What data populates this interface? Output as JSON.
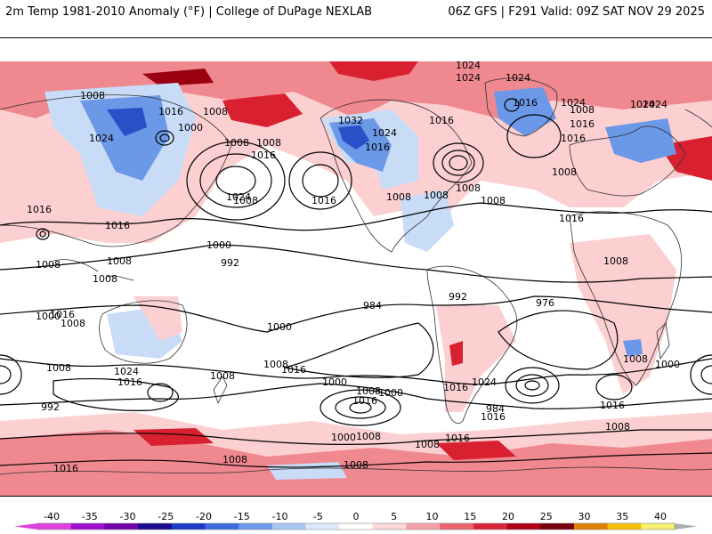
{
  "header": {
    "left_title": "2m Temp 1981-2010 Anomaly (°F) | College of DuPage NEXLAB",
    "right_title": "06Z GFS | F291 Valid: 09Z SAT NOV 29 2025"
  },
  "contour_labels": [
    {
      "text": "1024"
    },
    {
      "text": "1024"
    },
    {
      "text": "1024"
    },
    {
      "text": "1008"
    },
    {
      "text": "1016"
    },
    {
      "text": "1016"
    },
    {
      "text": "1008"
    },
    {
      "text": "1000"
    },
    {
      "text": "1032"
    },
    {
      "text": "1024"
    },
    {
      "text": "1016"
    },
    {
      "text": "1024"
    },
    {
      "text": "1008"
    },
    {
      "text": "1016"
    },
    {
      "text": "1016"
    },
    {
      "text": "1024"
    },
    {
      "text": "1024"
    },
    {
      "text": "1008"
    },
    {
      "text": "1016"
    },
    {
      "text": "1008"
    },
    {
      "text": "1024"
    },
    {
      "text": "1016"
    },
    {
      "text": "1008"
    },
    {
      "text": "1008"
    },
    {
      "text": "1024"
    },
    {
      "text": "1016"
    },
    {
      "text": "1008"
    },
    {
      "text": "1008"
    },
    {
      "text": "1008"
    },
    {
      "text": "1008"
    },
    {
      "text": "1008"
    },
    {
      "text": "1008"
    },
    {
      "text": "1016"
    },
    {
      "text": "1016"
    },
    {
      "text": "1008"
    },
    {
      "text": "1016"
    },
    {
      "text": "1008"
    },
    {
      "text": "1000"
    },
    {
      "text": "992"
    },
    {
      "text": "1000"
    },
    {
      "text": "1008"
    },
    {
      "text": "1016"
    },
    {
      "text": "1000"
    },
    {
      "text": "984"
    },
    {
      "text": "992"
    },
    {
      "text": "976"
    },
    {
      "text": "1008"
    },
    {
      "text": "1016"
    },
    {
      "text": "1000"
    },
    {
      "text": "1008"
    },
    {
      "text": "1000"
    },
    {
      "text": "1016"
    },
    {
      "text": "1008"
    },
    {
      "text": "1024"
    },
    {
      "text": "1016"
    },
    {
      "text": "992"
    },
    {
      "text": "984"
    },
    {
      "text": "1008"
    },
    {
      "text": "1000"
    },
    {
      "text": "1016"
    },
    {
      "text": "1008"
    },
    {
      "text": "1016"
    },
    {
      "text": "1024"
    },
    {
      "text": "1008"
    },
    {
      "text": "1016"
    },
    {
      "text": "1016"
    },
    {
      "text": "1008"
    },
    {
      "text": "1000"
    },
    {
      "text": "1008"
    },
    {
      "text": "1008"
    },
    {
      "text": "1008"
    },
    {
      "text": "1016"
    }
  ],
  "legend": {
    "ticks": [
      "-40",
      "-35",
      "-30",
      "-25",
      "-20",
      "-15",
      "-10",
      "-5",
      "0",
      "5",
      "10",
      "15",
      "20",
      "25",
      "30",
      "35",
      "40"
    ],
    "colors": [
      "#e040e0",
      "#a010d0",
      "#7000a8",
      "#1a0a90",
      "#1c3cc8",
      "#3a6ce0",
      "#6c9aec",
      "#a8c8f4",
      "#dceafa",
      "#ffffff",
      "#fcd8d8",
      "#f4a0a8",
      "#ec6470",
      "#d82838",
      "#b00018",
      "#7a0010",
      "#e08000",
      "#f8c000",
      "#f8f070"
    ]
  },
  "colors": {
    "warm_light": "#fcd0d0",
    "warm": "#f08890",
    "warm_strong": "#d82030",
    "warm_dark": "#9a0010",
    "cold_light": "#c8dcf8",
    "cold": "#6c98e8",
    "cold_strong": "#2a50c8",
    "contour": "#000000",
    "coast": "#303030"
  }
}
